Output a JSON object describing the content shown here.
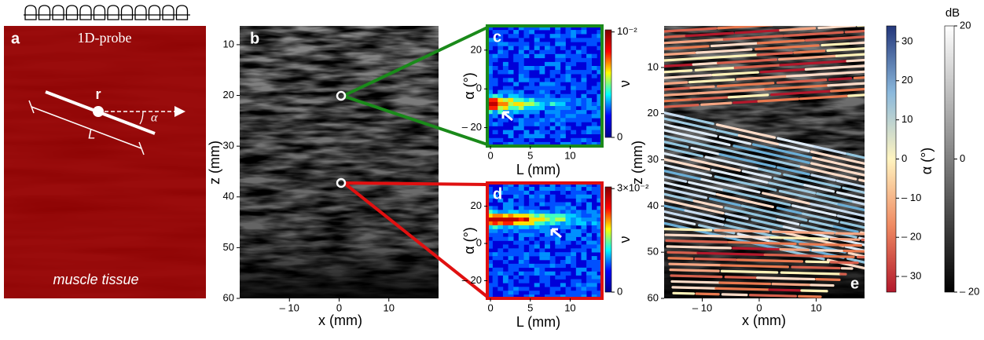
{
  "panel_a": {
    "label": "a",
    "probe": "1D-probe",
    "point": "r",
    "angle": "α",
    "length": "L",
    "tissue": "muscle tissue"
  },
  "panel_b": {
    "label": "b",
    "xlabel": "x (mm)",
    "ylabel": "z (mm)",
    "xlim": [
      -20,
      20
    ],
    "ylim": [
      6.3,
      60
    ],
    "xticks": [
      {
        "value": -10,
        "label": "– 10"
      },
      0,
      10
    ],
    "yticks": [
      10,
      20,
      30,
      40,
      50,
      60
    ]
  },
  "panel_c": {
    "label": "c",
    "xlabel": "L (mm)",
    "ylabel": "α (°)",
    "xlim": [
      -0.4,
      14
    ],
    "ylim": [
      -29.5,
      32.5
    ],
    "xticks": [
      0,
      5,
      10
    ],
    "yticks": [
      20,
      0,
      {
        "value": -20,
        "label": "– 20"
      }
    ],
    "colorbar": {
      "label": "ν",
      "lim": [
        0,
        0.0102
      ],
      "ticks": [
        {
          "value": 0.01,
          "label": "10⁻²"
        },
        0
      ]
    }
  },
  "panel_d": {
    "label": "d",
    "xlabel": "L (mm)",
    "ylabel": "α (°)",
    "xlim": [
      -0.4,
      14
    ],
    "ylim": [
      -29.5,
      32.5
    ],
    "xticks": [
      0,
      5,
      10
    ],
    "yticks": [
      20,
      0,
      {
        "value": -20,
        "label": "– 20"
      }
    ],
    "colorbar": {
      "label": "ν",
      "lim": [
        0,
        0.0305
      ],
      "ticks": [
        {
          "value": 0.03,
          "label": "3×10⁻²"
        },
        0
      ]
    }
  },
  "panel_e": {
    "label": "e",
    "xlabel": "x (mm)",
    "ylabel": "z (mm)",
    "xlim": [
      -16.7,
      18.5
    ],
    "ylim": [
      1,
      60
    ],
    "xticks": [
      {
        "value": -10,
        "label": "– 10"
      },
      0,
      10
    ],
    "yticks": [
      10,
      20,
      30,
      40,
      50,
      60
    ],
    "colorbar_angle": {
      "label": "α (°)",
      "lim": [
        -34,
        34
      ],
      "ticks": [
        30,
        20,
        10,
        0,
        {
          "value": -10,
          "label": "– 10"
        },
        {
          "value": -20,
          "label": "– 20"
        },
        {
          "value": -30,
          "label": "– 30"
        }
      ]
    },
    "colorbar_db": {
      "title": "dB",
      "lim": [
        -20,
        20
      ],
      "ticks": [
        20,
        0,
        {
          "value": -20,
          "label": "– 20"
        }
      ]
    }
  }
}
